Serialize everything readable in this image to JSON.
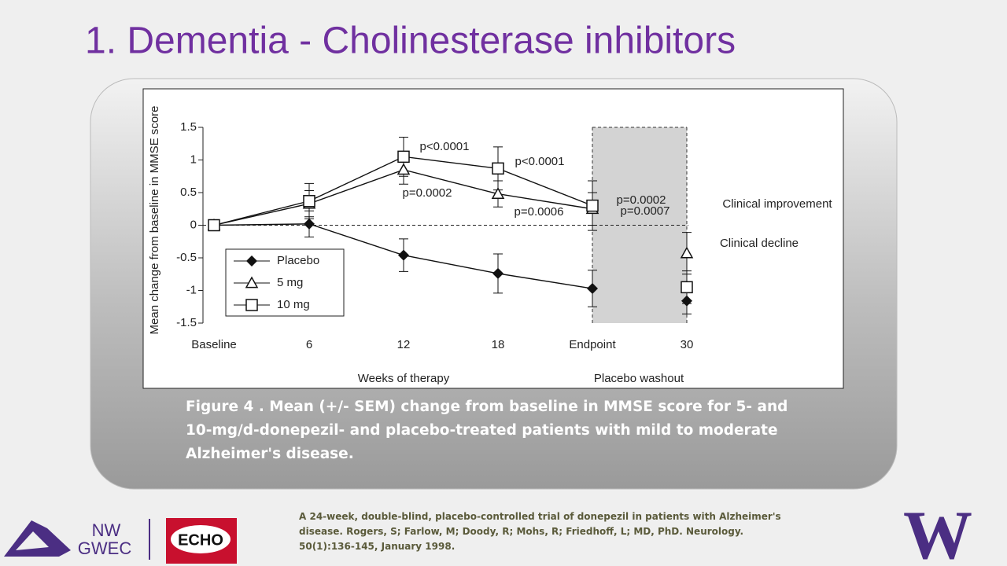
{
  "slide": {
    "title": "1. Dementia - Cholinesterase inhibitors",
    "caption": "Figure 4 . Mean (+/- SEM) change from baseline in MMSE score for 5- and 10-mg/d-donepezil- and placebo-treated patients with mild to moderate Alzheimer's disease.",
    "citation": "A 24-week, double-blind, placebo-controlled trial of donepezil in patients with Alzheimer's disease. Rogers, S; Farlow, M; Doody, R; Mohs, R; Friedhoff, L;  MD, PhD. Neurology. 50(1):136-145, January 1998.",
    "logos": {
      "nw": "NW",
      "gwec": "GWEC",
      "echo": "ECHO",
      "uw": "W"
    }
  },
  "chart_data": {
    "type": "line",
    "x_label": "Weeks of therapy",
    "y_label": "Mean change from baseline in MMSE score",
    "categories": [
      "Baseline",
      "6",
      "12",
      "18",
      "Endpoint",
      "30"
    ],
    "washout": {
      "label": "Placebo washout",
      "from": "Endpoint",
      "to": "30"
    },
    "series": [
      {
        "name": "Placebo",
        "marker": "diamond",
        "color": "#111111",
        "values": [
          0,
          0.02,
          -0.46,
          -0.74,
          -0.97,
          -1.16
        ],
        "errors": [
          0,
          0.2,
          0.25,
          0.3,
          0.28,
          0.2
        ]
      },
      {
        "name": "5 mg",
        "marker": "triangle",
        "color": "#111111",
        "values": [
          0,
          0.33,
          0.85,
          0.48,
          0.25,
          -0.43
        ],
        "errors": [
          0,
          0.2,
          0.22,
          0.2,
          0.25,
          0.32
        ]
      },
      {
        "name": "10 mg",
        "marker": "square",
        "color": "#111111",
        "values": [
          0,
          0.37,
          1.05,
          0.87,
          0.3,
          -0.95
        ],
        "errors": [
          0,
          0.27,
          0.3,
          0.33,
          0.38,
          0.25
        ]
      }
    ],
    "annotations": [
      "p<0.0001",
      "p<0.0001",
      "p=0.0002",
      "p=0.0006",
      "p=0.0002",
      "p=0.0007",
      "Clinical improvement",
      "Clinical decline"
    ],
    "reference_line": 0,
    "ylim": [
      -1.5,
      1.5
    ],
    "yticks": [
      1.5,
      1,
      0.5,
      0,
      -0.5,
      -1,
      -1.5
    ],
    "legend": "lower left"
  }
}
